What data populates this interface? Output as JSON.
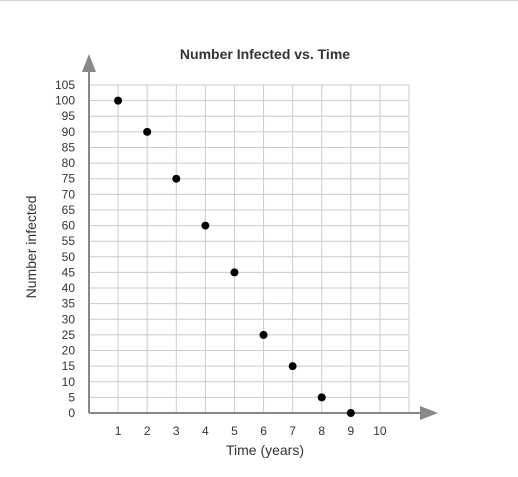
{
  "chart_data": {
    "type": "scatter",
    "title": "Number Infected vs. Time",
    "xlabel": "Time (years)",
    "ylabel": "Number infected",
    "xlim": [
      0,
      11
    ],
    "ylim": [
      0,
      105
    ],
    "x_ticks": [
      1,
      2,
      3,
      4,
      5,
      6,
      7,
      8,
      9,
      10
    ],
    "y_ticks": [
      0,
      5,
      10,
      15,
      20,
      25,
      30,
      35,
      40,
      45,
      50,
      55,
      60,
      65,
      70,
      75,
      80,
      85,
      90,
      95,
      100,
      105
    ],
    "grid": true,
    "point_color": "#000000",
    "grid_color": "#cccccc",
    "axis_color": "#888888",
    "series": [
      {
        "points": [
          {
            "x": 1,
            "y": 100
          },
          {
            "x": 2,
            "y": 90
          },
          {
            "x": 3,
            "y": 75
          },
          {
            "x": 4,
            "y": 60
          },
          {
            "x": 5,
            "y": 45
          },
          {
            "x": 6,
            "y": 25
          },
          {
            "x": 7,
            "y": 15
          },
          {
            "x": 8,
            "y": 5
          },
          {
            "x": 9,
            "y": 0
          }
        ]
      }
    ]
  }
}
